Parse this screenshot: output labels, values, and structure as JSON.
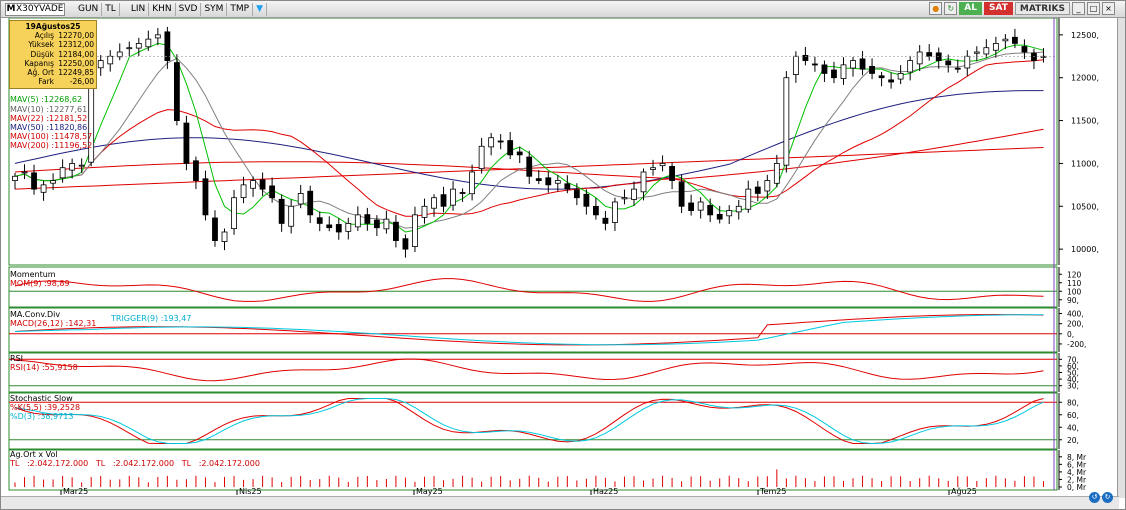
{
  "toolbar": {
    "menu_glyph": "M",
    "symbol": "X30YVADE",
    "items": [
      "GUN",
      "TL",
      "LIN",
      "KHN",
      "SVD",
      "SYM",
      "TMP"
    ],
    "al": "AL",
    "sat": "SAT",
    "brand": "MATRIKS"
  },
  "info": {
    "date": "19Ağustos25",
    "rows": [
      {
        "k": "Açılış",
        "v": "12270,00"
      },
      {
        "k": "Yüksek",
        "v": "12312,00"
      },
      {
        "k": "Düşük",
        "v": "12184,00"
      },
      {
        "k": "Kapanış",
        "v": "12250,00"
      },
      {
        "k": "Ağ. Ort",
        "v": "12249,85"
      },
      {
        "k": "Fark",
        "v": "-26,00"
      }
    ]
  },
  "legend": {
    "mav5": "MAV(5)",
    "mav5_v": ":12268,62",
    "mav10": "MAV(10)",
    "mav10_v": ":12277,61",
    "mav22": "MAV(22)",
    "mav22_v": ":12181,52",
    "mav50": "MAV(50)",
    "mav50_v": ":11820,86",
    "mav100": "MAV(100)",
    "mav100_v": ":11478,57",
    "mav200": "MAV(200)",
    "mav200_v": ":11196,52"
  },
  "panels": {
    "momentum": {
      "title": "Momentum",
      "label": "MOM(9)",
      "value": ":98,89"
    },
    "macd": {
      "title": "MA.Conv.Div",
      "label": "MACD(26,12)",
      "value": ":142,31",
      "trigger": "TRIGGER(9)",
      "trigger_value": ":193,47"
    },
    "rsi": {
      "title": "RSI",
      "label": "RSI(14)",
      "value": ":55,9158"
    },
    "stoch": {
      "title": "Stochastic Slow",
      "k_label": "%K(5,5)",
      "k_value": ":39,2528",
      "d_label": "%D(3)",
      "d_value": ":38,9713"
    },
    "vol": {
      "title": "Ag.Ort x Vol",
      "items": [
        "TL",
        ":2.042.172.000",
        "TL",
        ":2.042.172.000",
        "TL",
        ":2.042.172.000"
      ]
    }
  },
  "axes": {
    "price": [
      "12500,",
      "12000,",
      "11500,",
      "11000,",
      "10500,",
      "10000,"
    ],
    "mom": [
      "120",
      "110",
      "100",
      "90,"
    ],
    "macd": [
      "400,",
      "200,",
      "0,",
      "-200,"
    ],
    "rsi": [
      "70,",
      "60,",
      "50,",
      "40,",
      "30,"
    ],
    "stoch": [
      "80,",
      "60,",
      "40,",
      "20,"
    ],
    "vol": [
      "8, Mr",
      "6, Mr",
      "4, Mr",
      "2, Mr",
      "0, Mr"
    ],
    "months": [
      "Mar25",
      "Nis25",
      "May25",
      "Haz25",
      "Tem25",
      "Ağu25"
    ]
  },
  "colors": {
    "up": "#ffffff",
    "down": "#000000",
    "mav5": "#00c000",
    "mav10": "#808080",
    "mav22": "#e00000",
    "mav50": "#202080",
    "mav100": "#e00000",
    "mav200": "#e00000",
    "signal": "#00c8e0",
    "frame": "#2e8b2e"
  },
  "chart_data": {
    "type": "line",
    "price_range": [
      9850,
      12650
    ],
    "closes": [
      10850,
      10900,
      10700,
      10750,
      10800,
      10950,
      11000,
      10980,
      12100,
      12200,
      12250,
      12300,
      12350,
      12400,
      12450,
      12500,
      12200,
      11500,
      11000,
      10800,
      10400,
      10100,
      10200,
      10600,
      10750,
      10800,
      10700,
      10600,
      10300,
      10500,
      10650,
      10400,
      10300,
      10250,
      10200,
      10300,
      10400,
      10300,
      10250,
      10350,
      10100,
      10000,
      10400,
      10500,
      10600,
      10500,
      10700,
      10650,
      10900,
      11200,
      11300,
      11250,
      11100,
      11100,
      10850,
      10800,
      10750,
      10800,
      10700,
      10600,
      10500,
      10400,
      10300,
      10550,
      10600,
      10700,
      10900,
      10950,
      11000,
      10800,
      10500,
      10450,
      10550,
      10400,
      10350,
      10450,
      10500,
      10700,
      10650,
      10800,
      11000,
      12000,
      12250,
      12200,
      12150,
      12050,
      12000,
      12150,
      12200,
      12100,
      12050,
      12000,
      11950,
      12050,
      12200,
      12300,
      12250,
      12200,
      12150,
      12100,
      12250,
      12300,
      12350,
      12400,
      12450,
      12400,
      12300,
      12200,
      12250
    ]
  }
}
